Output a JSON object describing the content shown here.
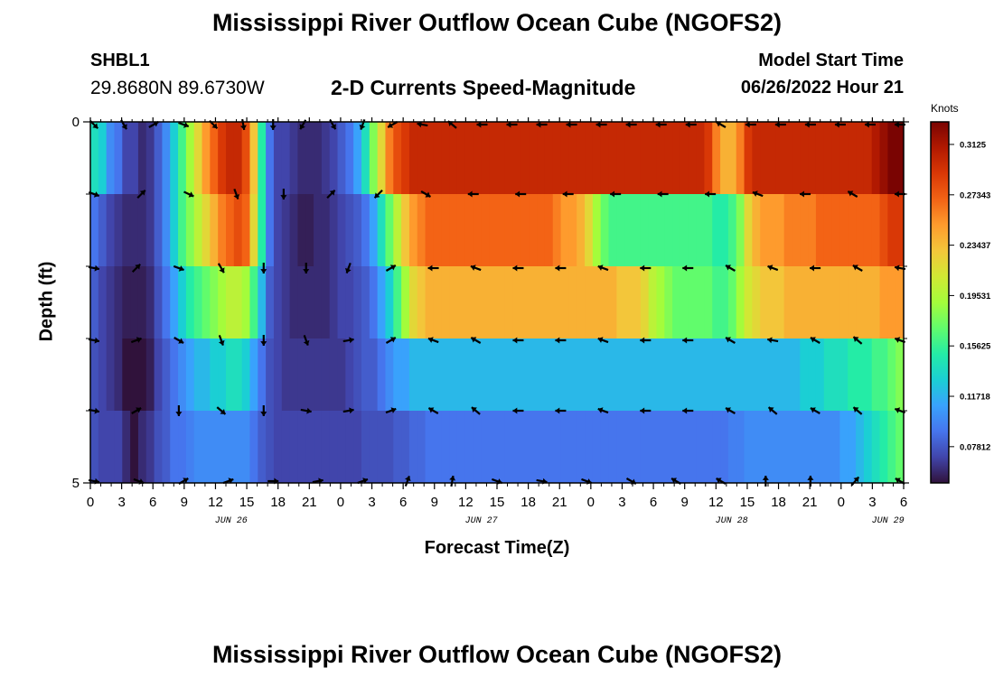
{
  "header": {
    "title": "Mississippi River Outflow Ocean Cube (NGOFS2)",
    "station": "SHBL1",
    "coords": "29.8680N  89.6730W",
    "subtitle": "2-D Currents Speed-Magnitude",
    "model_start_label": "Model Start Time",
    "model_start_value": "06/26/2022 Hour 21"
  },
  "footer": {
    "title_repeat": "Mississippi River Outflow Ocean Cube (NGOFS2)"
  },
  "colors": {
    "colormap": [
      "#30123b",
      "#4145ab",
      "#4675ed",
      "#39a2fc",
      "#1bcfd4",
      "#24eca6",
      "#61fc6c",
      "#a4fc3b",
      "#d1e834",
      "#f3c63a",
      "#fe9b2d",
      "#f36315",
      "#d93806",
      "#b11901",
      "#7a0402"
    ]
  },
  "chart_data": {
    "type": "heatmap",
    "title": "2-D Currents Speed-Magnitude",
    "xlabel": "Forecast Time(Z)",
    "ylabel": "Depth (ft)",
    "colorbar_label": "Knots",
    "x_hours": [
      0,
      3,
      6,
      9,
      12,
      15,
      18,
      21,
      24,
      27,
      30,
      33,
      36,
      39,
      42,
      45,
      48,
      51,
      54,
      57,
      60,
      63,
      66,
      69,
      72,
      75,
      78,
      81,
      84,
      87,
      90,
      93,
      96,
      99,
      102,
      105,
      108,
      111,
      114,
      117,
      120,
      123,
      126,
      129,
      132,
      135,
      138,
      141,
      144,
      147,
      150,
      153,
      156,
      159,
      162,
      165,
      168,
      171,
      174,
      177,
      180,
      183,
      186,
      189,
      192,
      195,
      198,
      201,
      204,
      207,
      210,
      213,
      216,
      219,
      222,
      225,
      228,
      231,
      234,
      237,
      240,
      243,
      246,
      249,
      252,
      255,
      258,
      261,
      264,
      267,
      270,
      273,
      276,
      279,
      282,
      285,
      288,
      291,
      294,
      297,
      300,
      303
    ],
    "x_tick_labels": [
      "0",
      "3",
      "6",
      "9",
      "12",
      "15",
      "18",
      "21",
      "0",
      "3",
      "6",
      "9",
      "12",
      "15",
      "18",
      "21",
      "0",
      "3",
      "6",
      "9",
      "12",
      "15",
      "18",
      "21",
      "0",
      "3",
      "6"
    ],
    "date_labels": [
      {
        "label": "JUN 26",
        "tick": 4.5
      },
      {
        "label": "JUN 27",
        "tick": 12.5
      },
      {
        "label": "JUN 28",
        "tick": 20.5
      },
      {
        "label": "JUN 29",
        "tick": 25.5
      }
    ],
    "y_tick_labels": [
      "0",
      "5"
    ],
    "ylim": [
      0,
      5
    ],
    "depth_layers": [
      0.5,
      1.5,
      2.5,
      3.5,
      4.5
    ],
    "colorbar_ticks": [
      0.07812,
      0.11718,
      0.15625,
      0.19531,
      0.23437,
      0.27343,
      0.3125
    ],
    "colorbar_tick_labels": [
      "0.07812",
      "0.11718",
      "0.15625",
      "0.19531",
      "0.23437",
      "0.27343",
      "0.3125"
    ],
    "vmin": 0.05,
    "vmax": 0.33,
    "speed_knots": [
      [
        0.14,
        0.13,
        0.1,
        0.09,
        0.07,
        0.07,
        0.06,
        0.065,
        0.08,
        0.1,
        0.13,
        0.16,
        0.19,
        0.22,
        0.25,
        0.27,
        0.29,
        0.3,
        0.3,
        0.28,
        0.23,
        0.15,
        0.09,
        0.07,
        0.07,
        0.065,
        0.06,
        0.06,
        0.06,
        0.065,
        0.07,
        0.08,
        0.09,
        0.11,
        0.14,
        0.18,
        0.22,
        0.26,
        0.28,
        0.29,
        0.3,
        0.3,
        0.3,
        0.3,
        0.3,
        0.3,
        0.3,
        0.3,
        0.3,
        0.3,
        0.3,
        0.3,
        0.3,
        0.3,
        0.3,
        0.3,
        0.3,
        0.3,
        0.3,
        0.3,
        0.3,
        0.3,
        0.3,
        0.3,
        0.3,
        0.3,
        0.3,
        0.3,
        0.3,
        0.3,
        0.3,
        0.3,
        0.3,
        0.3,
        0.3,
        0.3,
        0.3,
        0.29,
        0.26,
        0.24,
        0.24,
        0.26,
        0.29,
        0.3,
        0.3,
        0.3,
        0.3,
        0.3,
        0.3,
        0.3,
        0.3,
        0.3,
        0.3,
        0.3,
        0.3,
        0.3,
        0.3,
        0.3,
        0.31,
        0.32,
        0.33,
        0.33
      ],
      [
        0.09,
        0.08,
        0.07,
        0.065,
        0.06,
        0.06,
        0.06,
        0.065,
        0.08,
        0.1,
        0.13,
        0.16,
        0.18,
        0.2,
        0.22,
        0.24,
        0.26,
        0.27,
        0.28,
        0.27,
        0.22,
        0.15,
        0.09,
        0.07,
        0.065,
        0.06,
        0.055,
        0.055,
        0.06,
        0.06,
        0.065,
        0.07,
        0.075,
        0.08,
        0.09,
        0.11,
        0.14,
        0.17,
        0.2,
        0.23,
        0.25,
        0.26,
        0.27,
        0.27,
        0.27,
        0.27,
        0.27,
        0.27,
        0.27,
        0.27,
        0.27,
        0.27,
        0.27,
        0.27,
        0.27,
        0.27,
        0.27,
        0.27,
        0.26,
        0.25,
        0.25,
        0.24,
        0.22,
        0.19,
        0.17,
        0.16,
        0.16,
        0.16,
        0.16,
        0.16,
        0.16,
        0.16,
        0.16,
        0.16,
        0.16,
        0.16,
        0.16,
        0.16,
        0.15,
        0.15,
        0.16,
        0.18,
        0.22,
        0.24,
        0.25,
        0.25,
        0.25,
        0.26,
        0.26,
        0.26,
        0.26,
        0.27,
        0.27,
        0.27,
        0.27,
        0.27,
        0.27,
        0.27,
        0.27,
        0.28,
        0.29,
        0.29
      ],
      [
        0.08,
        0.07,
        0.065,
        0.06,
        0.055,
        0.055,
        0.055,
        0.06,
        0.075,
        0.09,
        0.11,
        0.13,
        0.15,
        0.16,
        0.17,
        0.18,
        0.19,
        0.2,
        0.2,
        0.19,
        0.16,
        0.12,
        0.08,
        0.07,
        0.065,
        0.06,
        0.06,
        0.06,
        0.06,
        0.06,
        0.065,
        0.07,
        0.07,
        0.075,
        0.08,
        0.09,
        0.11,
        0.13,
        0.16,
        0.19,
        0.22,
        0.23,
        0.24,
        0.24,
        0.24,
        0.24,
        0.24,
        0.24,
        0.24,
        0.24,
        0.24,
        0.24,
        0.24,
        0.24,
        0.24,
        0.24,
        0.24,
        0.24,
        0.24,
        0.24,
        0.24,
        0.24,
        0.24,
        0.24,
        0.24,
        0.24,
        0.23,
        0.23,
        0.23,
        0.22,
        0.2,
        0.19,
        0.18,
        0.17,
        0.17,
        0.17,
        0.17,
        0.17,
        0.16,
        0.16,
        0.17,
        0.19,
        0.21,
        0.22,
        0.23,
        0.23,
        0.23,
        0.24,
        0.24,
        0.24,
        0.24,
        0.24,
        0.24,
        0.24,
        0.24,
        0.24,
        0.24,
        0.24,
        0.24,
        0.25,
        0.25,
        0.25
      ],
      [
        0.075,
        0.07,
        0.065,
        0.06,
        0.05,
        0.05,
        0.05,
        0.055,
        0.07,
        0.08,
        0.09,
        0.1,
        0.11,
        0.12,
        0.12,
        0.13,
        0.13,
        0.14,
        0.14,
        0.13,
        0.11,
        0.09,
        0.075,
        0.07,
        0.065,
        0.065,
        0.065,
        0.065,
        0.065,
        0.065,
        0.065,
        0.065,
        0.07,
        0.075,
        0.08,
        0.08,
        0.09,
        0.1,
        0.11,
        0.11,
        0.12,
        0.12,
        0.12,
        0.12,
        0.12,
        0.12,
        0.12,
        0.12,
        0.12,
        0.12,
        0.12,
        0.12,
        0.12,
        0.12,
        0.12,
        0.12,
        0.12,
        0.12,
        0.12,
        0.12,
        0.12,
        0.12,
        0.12,
        0.12,
        0.12,
        0.12,
        0.12,
        0.12,
        0.12,
        0.12,
        0.12,
        0.12,
        0.12,
        0.12,
        0.12,
        0.12,
        0.12,
        0.12,
        0.12,
        0.12,
        0.12,
        0.12,
        0.12,
        0.12,
        0.12,
        0.12,
        0.12,
        0.12,
        0.12,
        0.13,
        0.13,
        0.13,
        0.14,
        0.14,
        0.14,
        0.15,
        0.15,
        0.15,
        0.16,
        0.16,
        0.17,
        0.18
      ],
      [
        0.075,
        0.07,
        0.07,
        0.07,
        0.06,
        0.05,
        0.06,
        0.065,
        0.075,
        0.08,
        0.09,
        0.09,
        0.095,
        0.1,
        0.1,
        0.1,
        0.1,
        0.1,
        0.1,
        0.1,
        0.09,
        0.08,
        0.075,
        0.07,
        0.07,
        0.07,
        0.07,
        0.07,
        0.07,
        0.07,
        0.07,
        0.07,
        0.07,
        0.07,
        0.075,
        0.075,
        0.075,
        0.075,
        0.08,
        0.08,
        0.085,
        0.085,
        0.09,
        0.09,
        0.09,
        0.09,
        0.09,
        0.09,
        0.09,
        0.09,
        0.09,
        0.09,
        0.09,
        0.09,
        0.09,
        0.09,
        0.09,
        0.09,
        0.09,
        0.09,
        0.09,
        0.09,
        0.09,
        0.09,
        0.09,
        0.09,
        0.09,
        0.09,
        0.09,
        0.09,
        0.09,
        0.09,
        0.09,
        0.09,
        0.09,
        0.09,
        0.09,
        0.09,
        0.09,
        0.09,
        0.095,
        0.095,
        0.1,
        0.1,
        0.1,
        0.1,
        0.1,
        0.1,
        0.1,
        0.1,
        0.1,
        0.1,
        0.1,
        0.1,
        0.11,
        0.11,
        0.12,
        0.13,
        0.14,
        0.15,
        0.16,
        0.17
      ]
    ],
    "vector_hours": [
      0,
      6,
      12,
      18,
      24,
      30,
      36,
      42,
      48,
      54,
      60,
      66,
      72,
      78,
      84,
      90,
      96,
      102,
      108,
      114,
      120,
      126,
      132,
      138,
      144,
      150,
      156,
      162,
      168,
      174,
      180,
      186,
      192,
      198,
      204,
      210,
      216,
      222,
      228,
      234,
      240,
      246,
      252,
      258,
      264,
      270,
      276,
      282,
      288,
      294,
      300,
      303
    ],
    "vector_directions_deg": [
      [
        135,
        150,
        60,
        110,
        135,
        170,
        180,
        210,
        150,
        200,
        240,
        280,
        310,
        270,
        270,
        270,
        270,
        270,
        270,
        270,
        270,
        300,
        270,
        270,
        270,
        270,
        270,
        270
      ],
      [
        110,
        45,
        115,
        160,
        180,
        45,
        225,
        120,
        270,
        270,
        270,
        270,
        270,
        270,
        290,
        270,
        300,
        270
      ],
      [
        100,
        45,
        110,
        150,
        180,
        180,
        200,
        60,
        270,
        290,
        270,
        270,
        290,
        270,
        270,
        300,
        290,
        270,
        300,
        280
      ],
      [
        100,
        70,
        120,
        160,
        180,
        160,
        80,
        60,
        290,
        300,
        270,
        270,
        290,
        270,
        270,
        300,
        280,
        300,
        310,
        290
      ],
      [
        100,
        60,
        180,
        130,
        180,
        100,
        80,
        70,
        300,
        310,
        270,
        270,
        290,
        270,
        270,
        300,
        310,
        300,
        310,
        290
      ],
      [
        100,
        110,
        60,
        70,
        90,
        80,
        70,
        20,
        10,
        110,
        100,
        110,
        120,
        300,
        300,
        0,
        0,
        40,
        300
      ]
    ]
  }
}
